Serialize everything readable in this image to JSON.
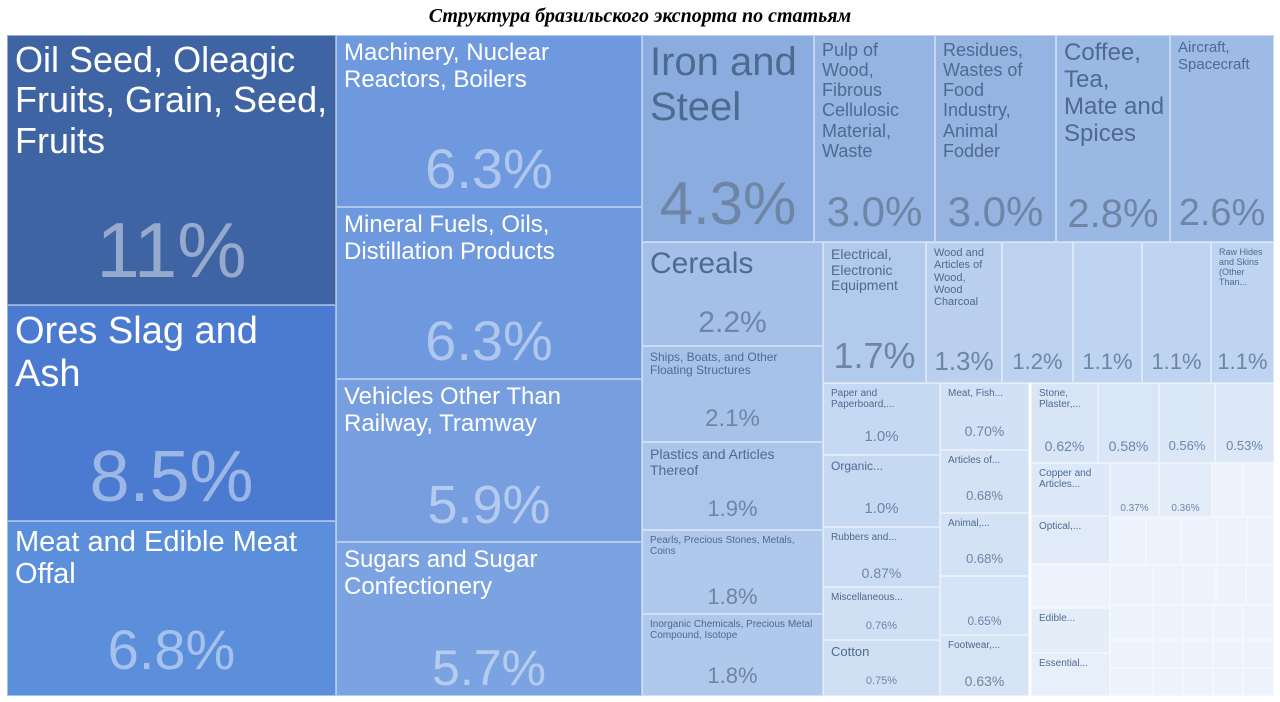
{
  "chart_data": {
    "type": "treemap",
    "title": "Структура бразильского экспорта по статьям",
    "items": [
      {
        "label": "Oil Seed, Oleagic Fruits, Grain, Seed, Fruits",
        "value": "11%",
        "color": "#3f64a3"
      },
      {
        "label": "Ores Slag and Ash",
        "value": "8.5%",
        "color": "#4b7bd0"
      },
      {
        "label": "Meat and Edible Meat Offal",
        "value": "6.8%",
        "color": "#5b8fdc"
      },
      {
        "label": "Machinery, Nuclear Reactors, Boilers",
        "value": "6.3%",
        "color": "#6f99df"
      },
      {
        "label": "Mineral Fuels, Oils, Distillation Products",
        "value": "6.3%",
        "color": "#6f99df"
      },
      {
        "label": "Vehicles Other Than Railway, Tramway",
        "value": "5.9%",
        "color": "#779fe0"
      },
      {
        "label": "Sugars and Sugar Confectionery",
        "value": "5.7%",
        "color": "#7ba2e1"
      },
      {
        "label": "Iron and Steel",
        "value": "4.3%",
        "color": "#8aacdf"
      },
      {
        "label": "Pulp of Wood, Fibrous Cellulosic Material, Waste",
        "value": "3.0%",
        "color": "#95b4e2"
      },
      {
        "label": "Residues, Wastes of Food Industry, Animal Fodder",
        "value": "3.0%",
        "color": "#95b4e2"
      },
      {
        "label": "Coffee, Tea, Mate and Spices",
        "value": "2.8%",
        "color": "#99b8e4"
      },
      {
        "label": "Aircraft, Spacecraft",
        "value": "2.6%",
        "color": "#9dbbe5"
      },
      {
        "label": "Cereals",
        "value": "2.2%",
        "color": "#a4c0e8"
      },
      {
        "label": "Ships, Boats, and Other Floating Structures",
        "value": "2.1%",
        "color": "#a7c2e9"
      },
      {
        "label": "Plastics and Articles Thereof",
        "value": "1.9%",
        "color": "#abc6ea"
      },
      {
        "label": "Pearls, Precious Stones, Metals, Coins",
        "value": "1.8%",
        "color": "#afc8eb"
      },
      {
        "label": "Inorganic Chemicals, Precious Metal Compound, Isotope",
        "value": "1.8%",
        "color": "#afc8eb"
      },
      {
        "label": "Electrical, Electronic Equipment",
        "value": "1.7%",
        "color": "#b2cbec"
      },
      {
        "label": "Wood and Articles of Wood, Wood Charcoal",
        "value": "1.3%",
        "color": "#bad0ee"
      },
      {
        "label": "",
        "value": "1.2%",
        "color": "#bcd2ef"
      },
      {
        "label": "",
        "value": "1.1%",
        "color": "#bfd4f0"
      },
      {
        "label": "",
        "value": "1.1%",
        "color": "#bfd4f0"
      },
      {
        "label": "Raw Hides and Skins (Other Than...",
        "value": "1.1%",
        "color": "#bfd4f0"
      },
      {
        "label": "Paper and Paperboard,...",
        "value": "1.0%",
        "color": "#c6d9f2"
      },
      {
        "label": "Organic...",
        "value": "1.0%",
        "color": "#c6d9f2"
      },
      {
        "label": "Rubbers and...",
        "value": "0.87%",
        "color": "#cadcf3"
      },
      {
        "label": "Miscellaneous...",
        "value": "0.76%",
        "color": "#cfdff4"
      },
      {
        "label": "Cotton",
        "value": "0.75%",
        "color": "#cfdff4"
      },
      {
        "label": "Meat, Fish...",
        "value": "0.70%",
        "color": "#d2e1f5"
      },
      {
        "label": "Articles of...",
        "value": "0.68%",
        "color": "#d3e2f5"
      },
      {
        "label": "Animal,...",
        "value": "0.68%",
        "color": "#d3e2f5"
      },
      {
        "label": "",
        "value": "0.65%",
        "color": "#d5e3f6"
      },
      {
        "label": "Footwear,...",
        "value": "0.63%",
        "color": "#d6e4f6"
      },
      {
        "label": "Stone, Plaster,...",
        "value": "0.62%",
        "color": "#d7e5f6"
      },
      {
        "label": "",
        "value": "0.58%",
        "color": "#d9e6f7"
      },
      {
        "label": "",
        "value": "0.56%",
        "color": "#dae7f7"
      },
      {
        "label": "",
        "value": "0.53%",
        "color": "#dce8f7"
      },
      {
        "label": "Copper and Articles...",
        "value": "",
        "color": "#dde9f8"
      },
      {
        "label": "",
        "value": "0.37%",
        "color": "#e3edf9"
      },
      {
        "label": "",
        "value": "0.36%",
        "color": "#e3edf9"
      },
      {
        "label": "Optical,...",
        "value": "",
        "color": "#e1ebf8"
      },
      {
        "label": "Edible...",
        "value": "",
        "color": "#e4eef9"
      },
      {
        "label": "Essential...",
        "value": "",
        "color": "#e6effa"
      }
    ]
  }
}
